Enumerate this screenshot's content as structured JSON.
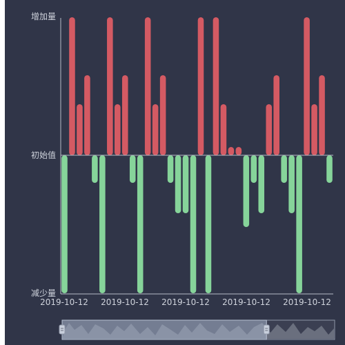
{
  "chart_data": {
    "type": "bar",
    "y_axis": {
      "labels": [
        "增加量",
        "初始值",
        "减少量"
      ]
    },
    "x_tick_labels": [
      "2019-10-12",
      "2019-10-12",
      "2019-10-12",
      "2019-10-12",
      "2019-10-12"
    ],
    "values": [
      -100,
      100,
      37,
      58,
      -20,
      -100,
      100,
      37,
      58,
      -20,
      -100,
      100,
      37,
      58,
      -20,
      -42,
      -42,
      -100,
      100,
      -100,
      100,
      37,
      6,
      6,
      -52,
      -20,
      -42,
      37,
      58,
      -20,
      -42,
      -100,
      100,
      37,
      58,
      -20
    ],
    "ylim": [
      -100,
      100
    ],
    "colors": {
      "positive": "#d45a63",
      "negative": "#86d49a",
      "background": "#303548",
      "axis": "#b9bdc8"
    },
    "zoom_slider": {
      "start_percent": 0,
      "end_percent": 75
    }
  }
}
